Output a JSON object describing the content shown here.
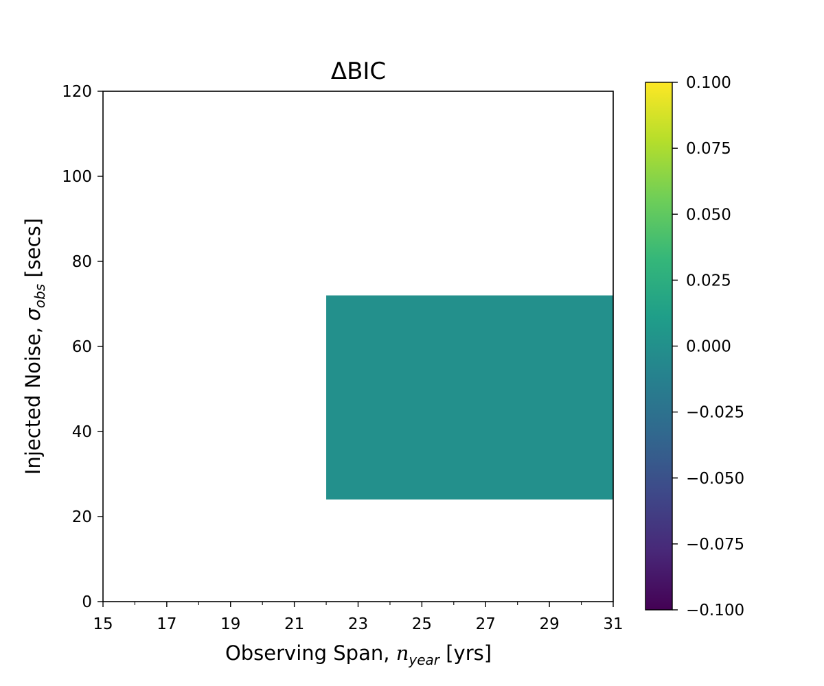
{
  "chart_data": {
    "type": "heatmap",
    "title": "ΔBIC",
    "xlabel": {
      "prefix": "Observing Span, ",
      "math": "n",
      "sub": "year",
      "suffix": " [yrs]"
    },
    "ylabel": {
      "prefix": "Injected Noise, ",
      "math": "σ",
      "sub": "obs",
      "suffix": " [secs]"
    },
    "xlim": [
      15,
      31
    ],
    "ylim": [
      0,
      120
    ],
    "x_ticks_major": [
      15,
      17,
      19,
      21,
      23,
      25,
      27,
      29,
      31
    ],
    "x_tick_labels": [
      "15",
      "17",
      "19",
      "21",
      "23",
      "25",
      "27",
      "29",
      "31"
    ],
    "x_ticks_minor": [
      16,
      18,
      20,
      22,
      24,
      26,
      28,
      30
    ],
    "y_ticks": [
      0,
      20,
      40,
      60,
      80,
      100,
      120
    ],
    "y_tick_labels": [
      "0",
      "20",
      "40",
      "60",
      "80",
      "100",
      "120"
    ],
    "cells": [
      {
        "x0": 22,
        "x1": 31,
        "y0": 24,
        "y1": 72,
        "value": 0.0
      }
    ],
    "colorbar": {
      "colormap": "viridis",
      "min": -0.1,
      "max": 0.1,
      "ticks": [
        -0.1,
        -0.075,
        -0.05,
        -0.025,
        0.0,
        0.025,
        0.05,
        0.075,
        0.1
      ],
      "tick_labels": [
        "−0.100",
        "−0.075",
        "−0.050",
        "−0.025",
        "0.000",
        "0.025",
        "0.050",
        "0.075",
        "0.100"
      ]
    },
    "colors": {
      "viridis": [
        "#440154",
        "#482878",
        "#3e4989",
        "#31688e",
        "#26828e",
        "#1f9e89",
        "#35b779",
        "#6ece58",
        "#b5de2b",
        "#fde725"
      ]
    }
  }
}
